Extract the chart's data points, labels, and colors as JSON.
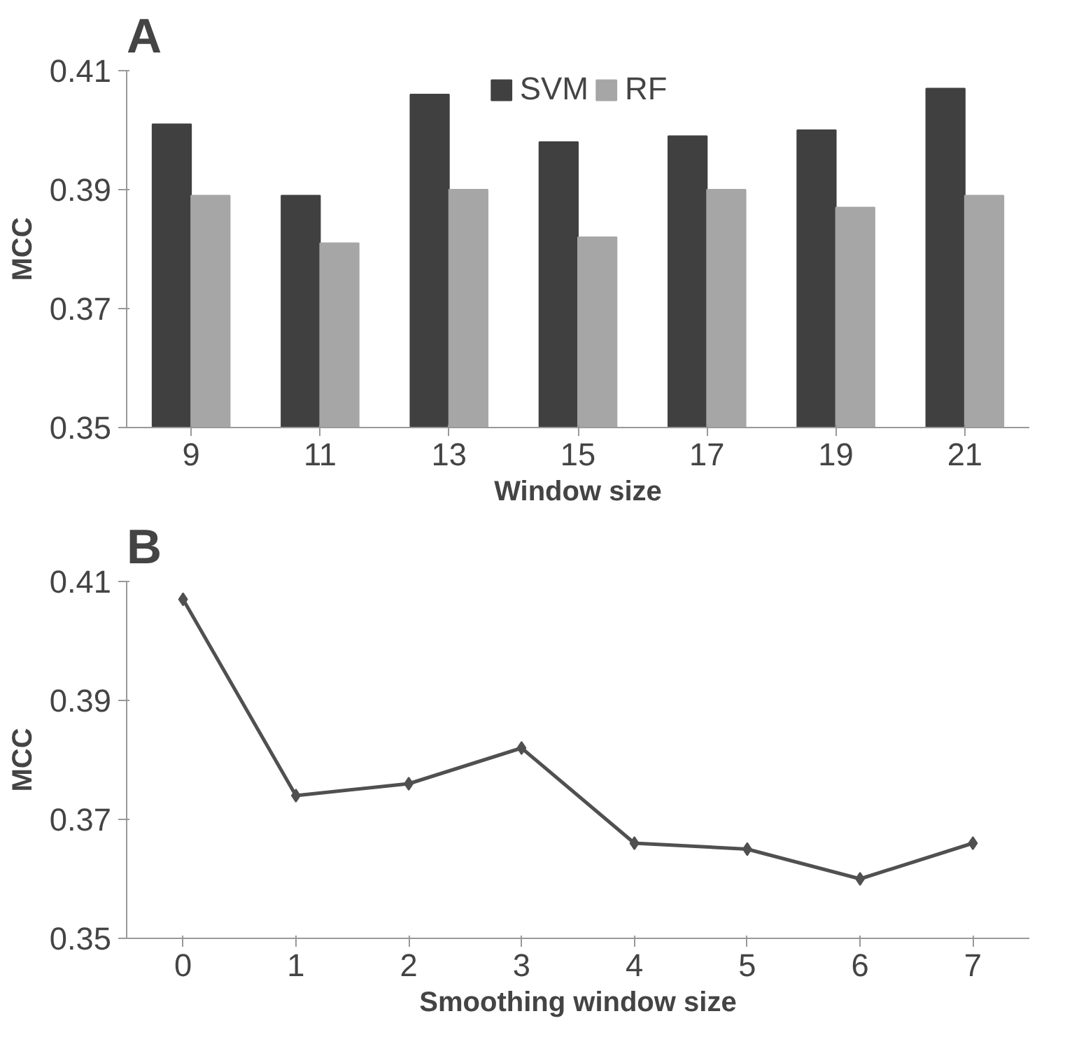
{
  "chart_data": [
    {
      "type": "bar",
      "title": "A",
      "xlabel": "Window size",
      "ylabel": "MCC",
      "categories": [
        "9",
        "11",
        "13",
        "15",
        "17",
        "19",
        "21"
      ],
      "series": [
        {
          "name": "SVM",
          "color": "#404040",
          "values": [
            0.401,
            0.389,
            0.406,
            0.398,
            0.399,
            0.4,
            0.407
          ]
        },
        {
          "name": "RF",
          "color": "#a6a6a6",
          "values": [
            0.389,
            0.381,
            0.39,
            0.382,
            0.39,
            0.387,
            0.389
          ]
        }
      ],
      "ylim": [
        0.35,
        0.41
      ],
      "yticks": [
        0.35,
        0.37,
        0.39,
        0.41
      ],
      "grid": false,
      "legend": "top"
    },
    {
      "type": "line",
      "title": "B",
      "xlabel": "Smoothing window size",
      "ylabel": "MCC",
      "categories": [
        "0",
        "1",
        "2",
        "3",
        "4",
        "5",
        "6",
        "7"
      ],
      "series": [
        {
          "color": "#505050",
          "values": [
            0.407,
            0.374,
            0.376,
            0.382,
            0.366,
            0.365,
            0.36,
            0.366
          ]
        }
      ],
      "ylim": [
        0.35,
        0.41
      ],
      "yticks": [
        0.35,
        0.37,
        0.39,
        0.41
      ],
      "grid": false,
      "marker": "diamond",
      "line_style": "solid"
    }
  ]
}
